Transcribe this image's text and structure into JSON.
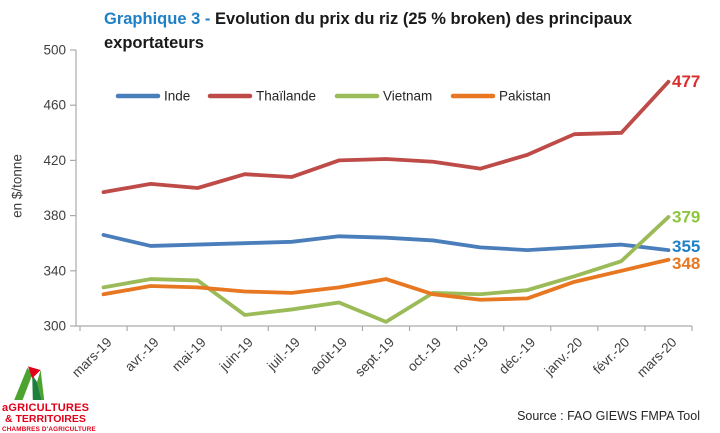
{
  "header": {
    "prefix": "Graphique 3 - ",
    "title": "Evolution du prix du riz (25 % broken) des principaux exportateurs"
  },
  "source": "Source : FAO GIEWS FMPA Tool",
  "logo": {
    "line1": "aGRICULTURES",
    "line2": "& TERRITOIRES",
    "line3": "CHAMBRES D'AGRICULTURE",
    "red": "#E2001A",
    "green_light": "#4DA32F",
    "green_dark": "#1D7E3E"
  },
  "chart_data": {
    "type": "line",
    "title": "Graphique 3 - Evolution du prix du riz (25 % broken) des principaux exportateurs",
    "ylabel": "en $/tonne",
    "xlabel": "",
    "ylim": [
      300,
      500
    ],
    "yticks": [
      300,
      340,
      380,
      420,
      460,
      500
    ],
    "grid": false,
    "legend_position": "top",
    "x": [
      "mars-19",
      "avr.-19",
      "mai-19",
      "juin-19",
      "juil.-19",
      "août-19",
      "sept.-19",
      "oct.-19",
      "nov.-19",
      "déc.-19",
      "janv.-20",
      "févr.-20",
      "mars-20"
    ],
    "series": [
      {
        "name": "Inde",
        "color": "#4A7EBB",
        "label_color": "#2080C6",
        "end_label": "355",
        "values": [
          366,
          358,
          359,
          360,
          361,
          365,
          364,
          362,
          357,
          355,
          357,
          359,
          355
        ]
      },
      {
        "name": "Thaïlande",
        "color": "#BE4B48",
        "label_color": "#D92E2E",
        "end_label": "477",
        "values": [
          397,
          403,
          400,
          410,
          408,
          420,
          421,
          419,
          414,
          424,
          439,
          440,
          477
        ]
      },
      {
        "name": "Vietnam",
        "color": "#9BBB59",
        "label_color": "#8CC63E",
        "end_label": "379",
        "values": [
          328,
          334,
          333,
          308,
          312,
          317,
          303,
          324,
          323,
          326,
          336,
          347,
          379
        ]
      },
      {
        "name": "Pakistan",
        "color": "#E87722",
        "label_color": "#E87722",
        "end_label": "348",
        "values": [
          323,
          329,
          328,
          325,
          324,
          328,
          334,
          323,
          319,
          320,
          332,
          340,
          348
        ]
      }
    ],
    "axis_color": "#ABABAB",
    "text_color": "#3F3F3F"
  }
}
